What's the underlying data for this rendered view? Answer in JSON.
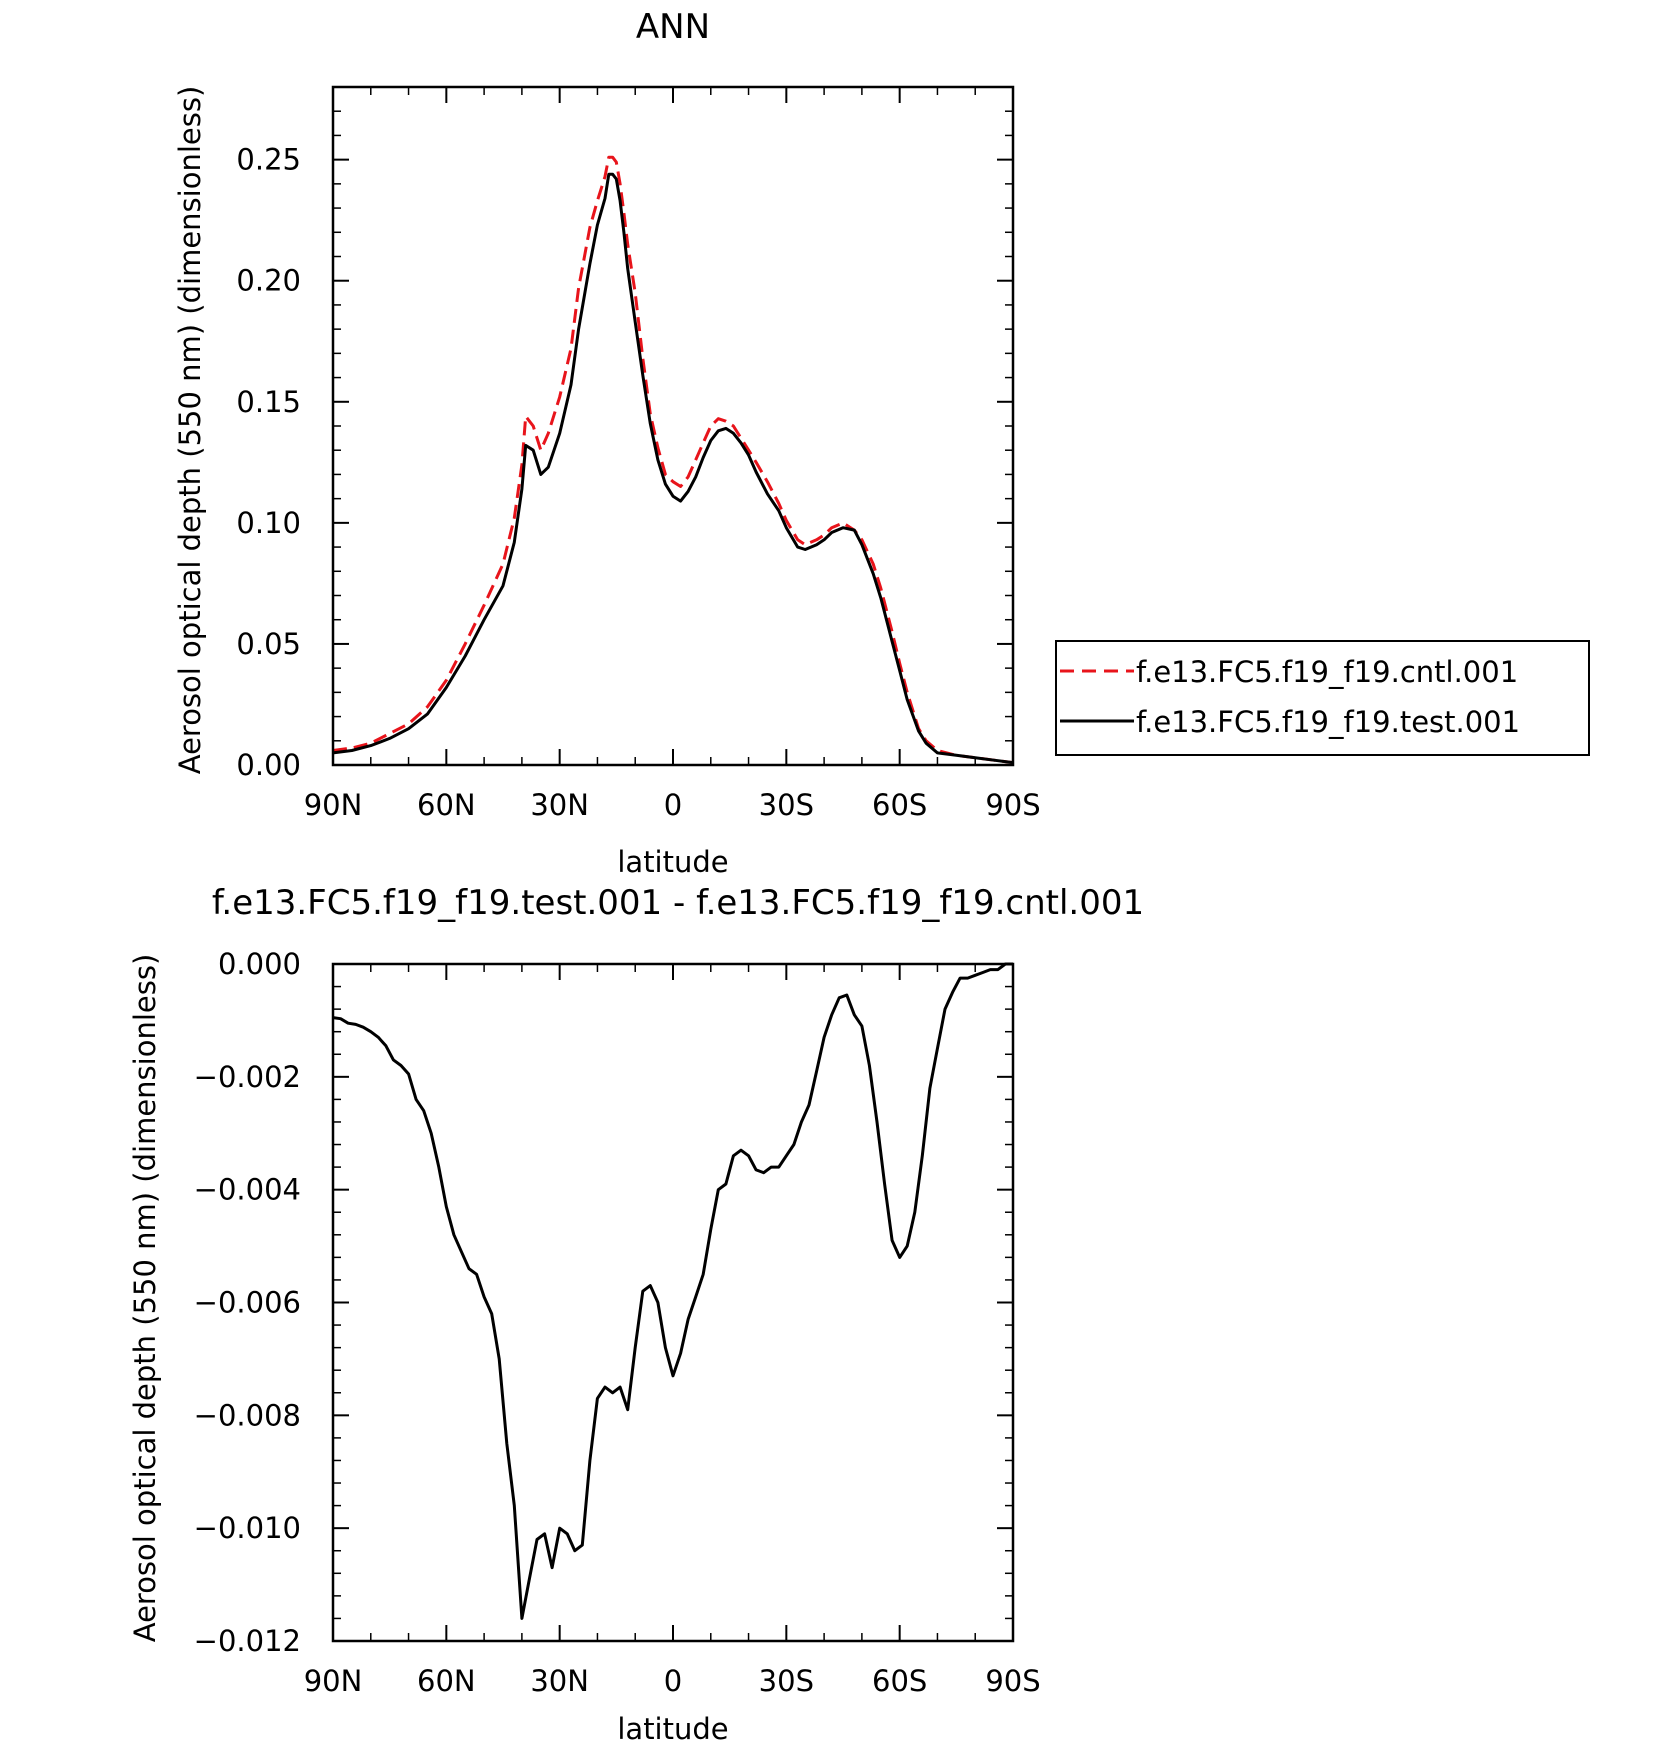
{
  "chart_data": [
    {
      "type": "line",
      "title": "ANN",
      "xlabel": "latitude",
      "ylabel": "Aerosol optical depth (550 nm) (dimensionless)",
      "xlim": [
        90,
        -90
      ],
      "ylim": [
        0,
        0.28
      ],
      "x_ticks": [
        90,
        60,
        30,
        0,
        -30,
        -60,
        -90
      ],
      "x_tick_labels": [
        "90N",
        "60N",
        "30N",
        "0",
        "30S",
        "60S",
        "90S"
      ],
      "y_ticks": [
        0,
        0.05,
        0.1,
        0.15,
        0.2,
        0.25
      ],
      "y_tick_labels": [
        "0.00",
        "0.05",
        "0.10",
        "0.15",
        "0.20",
        "0.25"
      ],
      "legend": "right",
      "grid": false,
      "series": [
        {
          "name": "f.e13.FC5.f19_f19.cntl.001",
          "color": "#e8141b",
          "style": "dashed",
          "x": [
            90,
            85,
            80,
            75,
            70,
            65,
            60,
            55,
            50,
            45,
            42,
            41,
            40,
            39,
            37,
            35,
            33,
            30,
            27,
            25,
            22,
            20,
            18,
            17,
            16,
            15,
            14,
            13,
            12,
            10,
            8,
            6,
            4,
            2,
            0,
            -2,
            -4,
            -6,
            -8,
            -10,
            -12,
            -14,
            -16,
            -18,
            -20,
            -22,
            -25,
            -28,
            -30,
            -33,
            -35,
            -38,
            -40,
            -42,
            -45,
            -48,
            -50,
            -53,
            -55,
            -58,
            -60,
            -62,
            -65,
            -67,
            -70,
            -75,
            -80,
            -85,
            -90
          ],
          "y": [
            0.006,
            0.007,
            0.009,
            0.013,
            0.017,
            0.024,
            0.035,
            0.05,
            0.066,
            0.083,
            0.102,
            0.113,
            0.124,
            0.144,
            0.14,
            0.13,
            0.137,
            0.152,
            0.172,
            0.197,
            0.222,
            0.233,
            0.243,
            0.251,
            0.251,
            0.249,
            0.24,
            0.228,
            0.215,
            0.195,
            0.168,
            0.145,
            0.131,
            0.12,
            0.117,
            0.115,
            0.119,
            0.126,
            0.133,
            0.14,
            0.143,
            0.142,
            0.14,
            0.135,
            0.13,
            0.125,
            0.117,
            0.108,
            0.101,
            0.093,
            0.091,
            0.093,
            0.095,
            0.098,
            0.1,
            0.097,
            0.093,
            0.083,
            0.073,
            0.055,
            0.042,
            0.03,
            0.015,
            0.01,
            0.006,
            0.004,
            0.003,
            0.002,
            0.001
          ]
        },
        {
          "name": "f.e13.FC5.f19_f19.test.001",
          "color": "#000000",
          "style": "solid",
          "x": [
            90,
            85,
            80,
            75,
            70,
            65,
            60,
            55,
            50,
            45,
            42,
            41,
            40,
            39,
            37,
            35,
            33,
            30,
            27,
            25,
            22,
            20,
            18,
            17,
            16,
            15,
            14,
            13,
            12,
            10,
            8,
            6,
            4,
            2,
            0,
            -2,
            -4,
            -6,
            -8,
            -10,
            -12,
            -14,
            -16,
            -18,
            -20,
            -22,
            -25,
            -28,
            -30,
            -33,
            -35,
            -38,
            -40,
            -42,
            -45,
            -48,
            -50,
            -53,
            -55,
            -58,
            -60,
            -62,
            -65,
            -67,
            -70,
            -75,
            -80,
            -85,
            -90
          ],
          "y": [
            0.005,
            0.006,
            0.008,
            0.011,
            0.015,
            0.021,
            0.032,
            0.045,
            0.06,
            0.074,
            0.092,
            0.103,
            0.114,
            0.132,
            0.13,
            0.12,
            0.123,
            0.137,
            0.157,
            0.18,
            0.207,
            0.223,
            0.234,
            0.244,
            0.244,
            0.242,
            0.233,
            0.22,
            0.205,
            0.183,
            0.161,
            0.141,
            0.126,
            0.116,
            0.111,
            0.109,
            0.113,
            0.119,
            0.127,
            0.134,
            0.138,
            0.139,
            0.137,
            0.133,
            0.128,
            0.121,
            0.112,
            0.105,
            0.098,
            0.09,
            0.089,
            0.091,
            0.093,
            0.096,
            0.098,
            0.097,
            0.091,
            0.079,
            0.069,
            0.051,
            0.039,
            0.027,
            0.014,
            0.009,
            0.005,
            0.004,
            0.003,
            0.002,
            0.001
          ]
        }
      ]
    },
    {
      "type": "line",
      "title": "f.e13.FC5.f19_f19.test.001 - f.e13.FC5.f19_f19.cntl.001",
      "xlabel": "latitude",
      "ylabel": "Aerosol optical depth (550 nm) (dimensionless)",
      "xlim": [
        90,
        -90
      ],
      "ylim": [
        -0.012,
        0.0
      ],
      "x_ticks": [
        90,
        60,
        30,
        0,
        -30,
        -60,
        -90
      ],
      "x_tick_labels": [
        "90N",
        "60N",
        "30N",
        "0",
        "30S",
        "60S",
        "90S"
      ],
      "y_ticks": [
        0.0,
        -0.002,
        -0.004,
        -0.006,
        -0.008,
        -0.01,
        -0.012
      ],
      "y_tick_labels": [
        "0.000",
        "−0.002",
        "−0.004",
        "−0.006",
        "−0.008",
        "−0.010",
        "−0.012"
      ],
      "grid": false,
      "series": [
        {
          "color": "#000000",
          "style": "solid",
          "x": [
            90,
            88,
            86,
            84,
            82,
            80,
            78,
            76,
            74,
            72,
            70,
            68,
            66,
            64,
            62,
            60,
            58,
            56,
            54,
            52,
            50,
            48,
            46,
            44,
            42,
            40,
            38,
            36,
            34,
            32,
            30,
            28,
            26,
            24,
            22,
            20,
            18,
            16,
            14,
            12,
            10,
            8,
            6,
            4,
            2,
            0,
            -2,
            -4,
            -6,
            -8,
            -10,
            -12,
            -14,
            -16,
            -18,
            -20,
            -22,
            -24,
            -26,
            -28,
            -30,
            -32,
            -34,
            -36,
            -38,
            -40,
            -42,
            -44,
            -46,
            -48,
            -50,
            -52,
            -54,
            -56,
            -58,
            -60,
            -62,
            -64,
            -66,
            -68,
            -70,
            -72,
            -74,
            -76,
            -78,
            -80,
            -82,
            -84,
            -86,
            -88,
            -90
          ],
          "y": [
            -0.00095,
            -0.00097,
            -0.00105,
            -0.00107,
            -0.00112,
            -0.0012,
            -0.0013,
            -0.00145,
            -0.0017,
            -0.0018,
            -0.00195,
            -0.0024,
            -0.0026,
            -0.003,
            -0.0036,
            -0.0043,
            -0.0048,
            -0.0051,
            -0.0054,
            -0.0055,
            -0.0059,
            -0.0062,
            -0.007,
            -0.0085,
            -0.0096,
            -0.0116,
            -0.0109,
            -0.0102,
            -0.0101,
            -0.0107,
            -0.01,
            -0.0101,
            -0.0104,
            -0.0103,
            -0.0088,
            -0.0077,
            -0.0075,
            -0.0076,
            -0.0075,
            -0.0079,
            -0.0068,
            -0.0058,
            -0.0057,
            -0.006,
            -0.0068,
            -0.0073,
            -0.0069,
            -0.0063,
            -0.0059,
            -0.0055,
            -0.0047,
            -0.004,
            -0.0039,
            -0.0034,
            -0.0033,
            -0.0034,
            -0.00365,
            -0.0037,
            -0.0036,
            -0.0036,
            -0.0034,
            -0.0032,
            -0.0028,
            -0.0025,
            -0.0019,
            -0.0013,
            -0.0009,
            -0.0006,
            -0.00055,
            -0.0009,
            -0.0011,
            -0.0018,
            -0.0028,
            -0.0039,
            -0.0049,
            -0.0052,
            -0.005,
            -0.0044,
            -0.0034,
            -0.0022,
            -0.0015,
            -0.0008,
            -0.0005,
            -0.00025,
            -0.00025,
            -0.0002,
            -0.00015,
            -0.0001,
            -0.0001,
            0.0,
            0.0
          ]
        }
      ]
    }
  ]
}
